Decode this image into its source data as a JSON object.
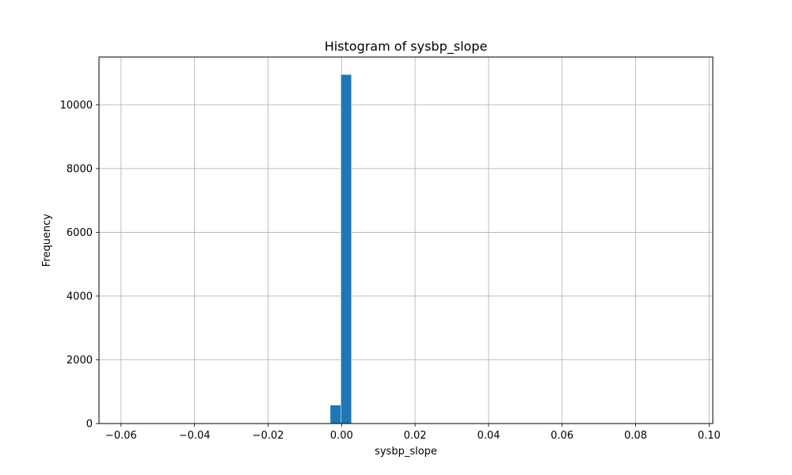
{
  "chart_data": {
    "type": "bar",
    "title": "Histogram of sysbp_slope",
    "xlabel": "sysbp_slope",
    "ylabel": "Frequency",
    "xlim": [
      -0.066,
      0.101
    ],
    "ylim": [
      0,
      11500
    ],
    "grid": true,
    "bar_color": "#1f77b4",
    "x_ticks": [
      -0.06,
      -0.04,
      -0.02,
      0.0,
      0.02,
      0.04,
      0.06,
      0.08,
      0.1
    ],
    "x_tick_labels": [
      "−0.06",
      "−0.04",
      "−0.02",
      "0.00",
      "0.02",
      "0.04",
      "0.06",
      "0.08",
      "0.10"
    ],
    "y_ticks": [
      0,
      2000,
      4000,
      6000,
      8000,
      10000
    ],
    "y_tick_labels": [
      "0",
      "2000",
      "4000",
      "6000",
      "8000",
      "10000"
    ],
    "bins": [
      {
        "x0": -0.0031,
        "x1": -0.0002,
        "count": 580
      },
      {
        "x0": -0.0002,
        "x1": 0.0027,
        "count": 10950
      }
    ]
  }
}
